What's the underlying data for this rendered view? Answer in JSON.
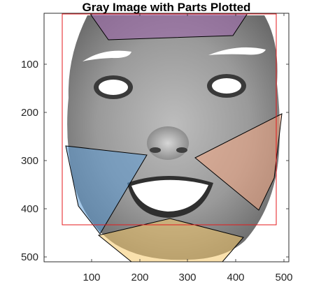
{
  "figure": {
    "title": "Gray Image with Parts Plotted",
    "x_ticks": [
      "100",
      "200",
      "300",
      "400",
      "500"
    ],
    "y_ticks": [
      "100",
      "200",
      "300",
      "400",
      "500"
    ]
  },
  "image": {
    "kind": "grayscale face photograph (masked)",
    "bounding_box_color": "#e41a1c"
  },
  "parts": [
    {
      "name": "forehead-region",
      "color": "#9b6da6",
      "opacity": 0.7
    },
    {
      "name": "left-cheek-region",
      "color": "#5b9bd5",
      "opacity": 0.55
    },
    {
      "name": "right-cheek-region",
      "color": "#f4a582",
      "opacity": 0.55
    },
    {
      "name": "chin-region",
      "color": "#f6c96a",
      "opacity": 0.55
    }
  ]
}
